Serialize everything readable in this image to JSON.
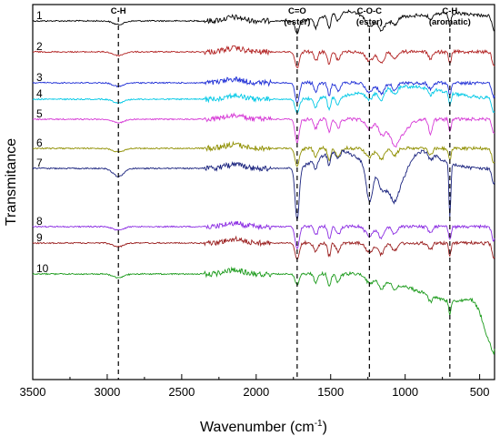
{
  "chart_data": {
    "type": "line",
    "xlabel": "Wavenumber (cm",
    "xlabel_sup": "-1",
    "xlabel_tail": ")",
    "ylabel": "Transmitance",
    "xlim": [
      3500,
      400
    ],
    "x_reversed": true,
    "x_ticks": [
      3500,
      3000,
      2500,
      2000,
      1500,
      1000,
      500
    ],
    "grid": false,
    "legend": "none",
    "series_labels": [
      "1",
      "2",
      "3",
      "4",
      "5",
      "6",
      "7",
      "8",
      "9",
      "10"
    ],
    "series_colors": [
      "#000000",
      "#b22222",
      "#1f2fd6",
      "#00c8e6",
      "#d63ad6",
      "#8f8f00",
      "#1a237e",
      "#8a2be2",
      "#9a1f1f",
      "#1a9a1a"
    ],
    "annotations": [
      {
        "label_lines": [
          "C-H"
        ],
        "x": 2925
      },
      {
        "label_lines": [
          "C=O",
          "(ester)"
        ],
        "x": 1725
      },
      {
        "label_lines": [
          "C-O-C",
          "(ester)"
        ],
        "x": 1240
      },
      {
        "label_lines": [
          "C-H",
          "(aromatic)"
        ],
        "x": 700
      }
    ]
  }
}
